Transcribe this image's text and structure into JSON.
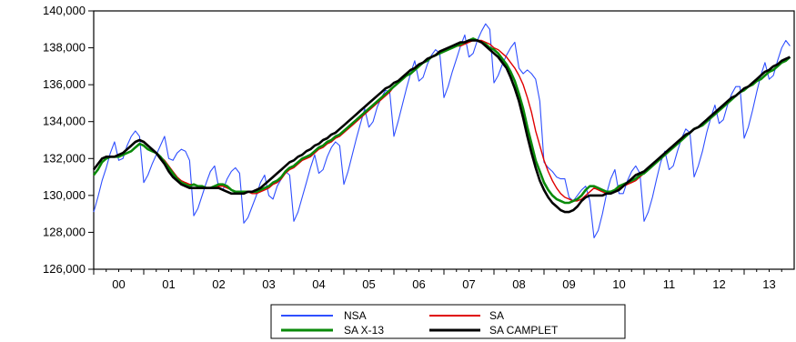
{
  "chart_data": {
    "type": "line",
    "title": "",
    "xlabel": "",
    "ylabel": "",
    "x_range": [
      2000.0,
      2014.0
    ],
    "ylim": [
      126000,
      140000
    ],
    "y_ticks": [
      126000,
      128000,
      130000,
      132000,
      134000,
      136000,
      138000,
      140000
    ],
    "y_tick_labels": [
      "126,000",
      "128,000",
      "130,000",
      "132,000",
      "134,000",
      "136,000",
      "138,000",
      "140,000"
    ],
    "x_ticks": [
      2000,
      2001,
      2002,
      2003,
      2004,
      2005,
      2006,
      2007,
      2008,
      2009,
      2010,
      2011,
      2012,
      2013
    ],
    "x_tick_labels": [
      "00",
      "01",
      "02",
      "03",
      "04",
      "05",
      "06",
      "07",
      "08",
      "09",
      "10",
      "11",
      "12",
      "13"
    ],
    "grid": false,
    "legend": {
      "placement": "bottom-center",
      "columns": 2
    },
    "series": [
      {
        "name": "NSA",
        "color": "#2f4fff",
        "frequency": "monthly",
        "start": 2000.0,
        "values": [
          129100,
          129900,
          130800,
          131500,
          132300,
          132900,
          131900,
          132000,
          132700,
          133200,
          133500,
          133200,
          130700,
          131100,
          131700,
          132200,
          132700,
          133200,
          132000,
          131900,
          132300,
          132500,
          132400,
          131900,
          128900,
          129300,
          130000,
          130700,
          131300,
          131600,
          130400,
          130300,
          130900,
          131300,
          131500,
          131200,
          128500,
          128800,
          129400,
          130000,
          130700,
          131100,
          130000,
          129800,
          130500,
          130900,
          131300,
          131100,
          128600,
          129100,
          129900,
          130700,
          131500,
          132200,
          131200,
          131400,
          132100,
          132600,
          132900,
          132700,
          130600,
          131300,
          132200,
          133100,
          133900,
          134700,
          133700,
          134000,
          134800,
          135300,
          135700,
          135600,
          133200,
          134000,
          134900,
          135800,
          136600,
          137300,
          136200,
          136400,
          137100,
          137600,
          137900,
          137700,
          135300,
          135900,
          136700,
          137400,
          138100,
          138700,
          137500,
          137700,
          138400,
          138900,
          139300,
          139000,
          136100,
          136500,
          137100,
          137600,
          138000,
          138300,
          136900,
          136600,
          136800,
          136600,
          136300,
          135100,
          131800,
          131500,
          131300,
          131000,
          130900,
          130900,
          129900,
          129700,
          130000,
          130300,
          130500,
          129700,
          127700,
          128100,
          129000,
          130100,
          130900,
          131400,
          130100,
          130100,
          130800,
          131300,
          131600,
          131200,
          128600,
          129100,
          129900,
          130900,
          131800,
          132400,
          131400,
          131600,
          132400,
          133100,
          133600,
          133400,
          131000,
          131600,
          132400,
          133400,
          134200,
          134900,
          133900,
          134100,
          134900,
          135500,
          135900,
          135900,
          133100,
          133700,
          134600,
          135600,
          136500,
          137200,
          136300,
          136500,
          137300,
          138000,
          138400,
          138100
        ]
      },
      {
        "name": "SA",
        "color": "#e00000",
        "frequency": "monthly",
        "start": 2000.0,
        "values": [
          131100,
          131400,
          131800,
          132000,
          132100,
          132100,
          132100,
          132200,
          132300,
          132400,
          132600,
          132800,
          132700,
          132500,
          132400,
          132300,
          132100,
          131900,
          131600,
          131300,
          131000,
          130800,
          130700,
          130600,
          130600,
          130500,
          130500,
          130400,
          130400,
          130400,
          130500,
          130500,
          130400,
          130300,
          130200,
          130200,
          130200,
          130200,
          130100,
          130100,
          130200,
          130300,
          130400,
          130600,
          130700,
          130900,
          131200,
          131400,
          131500,
          131700,
          131900,
          132000,
          132100,
          132300,
          132500,
          132600,
          132800,
          132900,
          133100,
          133200,
          133400,
          133600,
          133800,
          134000,
          134200,
          134400,
          134600,
          134800,
          135000,
          135200,
          135400,
          135600,
          135900,
          136100,
          136300,
          136500,
          136600,
          136800,
          137000,
          137200,
          137300,
          137500,
          137600,
          137700,
          137800,
          137900,
          138000,
          138100,
          138100,
          138200,
          138300,
          138400,
          138400,
          138400,
          138300,
          138200,
          138000,
          137900,
          137700,
          137500,
          137200,
          136900,
          136500,
          136000,
          135300,
          134500,
          133500,
          132700,
          131900,
          131300,
          130800,
          130400,
          130100,
          129900,
          129800,
          129700,
          129700,
          129800,
          130000,
          130200,
          130400,
          130300,
          130200,
          130100,
          130100,
          130200,
          130400,
          130500,
          130600,
          130700,
          130800,
          131000,
          131200,
          131400,
          131600,
          131800,
          132000,
          132200,
          132400,
          132600,
          132800,
          133000,
          133200,
          133400,
          133600,
          133700,
          133800,
          134000,
          134200,
          134400,
          134600,
          134800,
          135000,
          135200,
          135400,
          135600,
          135700,
          135900,
          136000,
          136200,
          136300,
          136500,
          136700,
          136800,
          137000,
          137200,
          137300,
          137500
        ]
      },
      {
        "name": "SA X-13",
        "color": "#0a8a0a",
        "frequency": "monthly",
        "start": 2000.0,
        "values": [
          131100,
          131400,
          131800,
          132000,
          132100,
          132100,
          132100,
          132200,
          132300,
          132400,
          132600,
          132800,
          132700,
          132500,
          132400,
          132300,
          132100,
          131800,
          131500,
          131200,
          130900,
          130700,
          130600,
          130500,
          130600,
          130500,
          130500,
          130400,
          130400,
          130500,
          130600,
          130600,
          130500,
          130300,
          130200,
          130200,
          130200,
          130200,
          130200,
          130200,
          130300,
          130400,
          130500,
          130700,
          130800,
          131000,
          131300,
          131500,
          131600,
          131800,
          132000,
          132100,
          132200,
          132400,
          132600,
          132700,
          132900,
          133000,
          133200,
          133300,
          133500,
          133700,
          133900,
          134100,
          134300,
          134500,
          134700,
          134900,
          135100,
          135300,
          135500,
          135700,
          135900,
          136100,
          136300,
          136500,
          136600,
          136800,
          137000,
          137200,
          137300,
          137500,
          137600,
          137700,
          137800,
          137900,
          138000,
          138100,
          138200,
          138300,
          138400,
          138500,
          138400,
          138300,
          138200,
          138000,
          137900,
          137700,
          137400,
          137100,
          136700,
          136200,
          135500,
          134700,
          133700,
          132800,
          131900,
          131300,
          130700,
          130300,
          130000,
          129800,
          129700,
          129600,
          129600,
          129700,
          129800,
          130000,
          130300,
          130500,
          130500,
          130400,
          130300,
          130200,
          130200,
          130300,
          130500,
          130600,
          130700,
          130800,
          130900,
          131100,
          131200,
          131400,
          131600,
          131800,
          132000,
          132200,
          132400,
          132600,
          132800,
          133000,
          133200,
          133400,
          133600,
          133700,
          133800,
          134000,
          134200,
          134400,
          134600,
          134800,
          135000,
          135200,
          135400,
          135600,
          135700,
          135900,
          136000,
          136200,
          136300,
          136500,
          136700,
          136800,
          137000,
          137200,
          137300,
          137500
        ]
      },
      {
        "name": "SA CAMPLET",
        "color": "#000000",
        "frequency": "monthly",
        "start": 2000.0,
        "values": [
          131400,
          131700,
          132000,
          132100,
          132100,
          132100,
          132200,
          132300,
          132500,
          132700,
          132900,
          133000,
          132900,
          132700,
          132500,
          132300,
          132000,
          131700,
          131300,
          131000,
          130800,
          130600,
          130500,
          130400,
          130400,
          130400,
          130400,
          130400,
          130400,
          130400,
          130400,
          130300,
          130200,
          130100,
          130100,
          130100,
          130100,
          130200,
          130200,
          130300,
          130400,
          130600,
          130800,
          131000,
          131200,
          131400,
          131600,
          131800,
          131900,
          132100,
          132200,
          132400,
          132500,
          132700,
          132800,
          133000,
          133100,
          133300,
          133400,
          133600,
          133800,
          134000,
          134200,
          134400,
          134600,
          134800,
          135000,
          135200,
          135400,
          135600,
          135800,
          135900,
          136100,
          136200,
          136400,
          136600,
          136800,
          136900,
          137100,
          137200,
          137400,
          137500,
          137600,
          137800,
          137900,
          138000,
          138100,
          138200,
          138300,
          138300,
          138400,
          138400,
          138400,
          138300,
          138100,
          137900,
          137700,
          137500,
          137200,
          136900,
          136400,
          135800,
          135100,
          134200,
          133200,
          132300,
          131500,
          130800,
          130300,
          129900,
          129600,
          129400,
          129200,
          129100,
          129100,
          129200,
          129400,
          129700,
          129900,
          130000,
          130000,
          130000,
          130000,
          130100,
          130100,
          130200,
          130300,
          130500,
          130700,
          130900,
          131100,
          131200,
          131300,
          131500,
          131700,
          131900,
          132100,
          132300,
          132500,
          132700,
          132900,
          133100,
          133300,
          133400,
          133600,
          133700,
          133900,
          134100,
          134300,
          134500,
          134700,
          134900,
          135100,
          135300,
          135400,
          135600,
          135800,
          135900,
          136100,
          136300,
          136500,
          136700,
          136800,
          137000,
          137100,
          137300,
          137400,
          137500
        ]
      }
    ]
  }
}
